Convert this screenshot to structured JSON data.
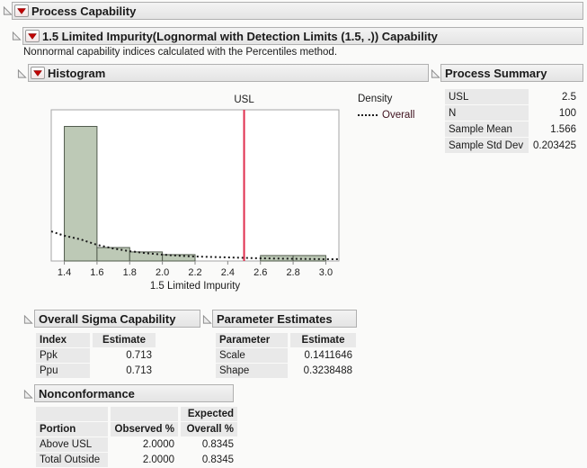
{
  "outline": {
    "root_title": "Process Capability",
    "variable_title": "1.5 Limited Impurity(Lognormal with Detection Limits (1.5, .)) Capability",
    "note": "Nonnormal capability indices calculated with the Percentiles method."
  },
  "histogram_section": {
    "title": "Histogram",
    "legend": {
      "title": "Density",
      "overall_label": "Overall"
    }
  },
  "chart_data": {
    "type": "bar",
    "subtype": "histogram",
    "title": "Histogram",
    "xlabel": "1.5 Limited Impurity",
    "ylabel": "Density",
    "x_range": [
      1.32,
      3.08
    ],
    "x_ticks": [
      1.4,
      1.6,
      1.8,
      2.0,
      2.2,
      2.4,
      2.6,
      2.8,
      3.0
    ],
    "bins": [
      [
        1.4,
        1.6
      ],
      [
        1.6,
        1.8
      ],
      [
        1.8,
        2.0
      ],
      [
        2.0,
        2.2
      ],
      [
        2.2,
        2.4
      ],
      [
        2.4,
        2.6
      ],
      [
        2.6,
        2.8
      ],
      [
        2.8,
        3.0
      ]
    ],
    "bar_heights_relative": [
      0.89,
      0.089,
      0.06,
      0.042,
      0,
      0,
      0.036,
      0.036
    ],
    "usl": 2.5,
    "usl_label": "USL",
    "curve": {
      "name": "Overall",
      "style": "dotted",
      "x": [
        1.32,
        1.4,
        1.5,
        1.6,
        1.7,
        1.8,
        1.9,
        2.0,
        2.1,
        2.2,
        2.4,
        2.6,
        2.8,
        3.0,
        3.08
      ],
      "y_relative": [
        0.196,
        0.167,
        0.143,
        0.107,
        0.083,
        0.065,
        0.052,
        0.042,
        0.035,
        0.03,
        0.024,
        0.018,
        0.015,
        0.012,
        0.012
      ]
    },
    "colors": {
      "bar_fill": "#bdc9b6",
      "bar_border": "#505a4c",
      "usl_line": "#e02e4e",
      "curve": "#1a1a1a",
      "plot_border": "#a6a6a6"
    }
  },
  "process_summary": {
    "title": "Process Summary",
    "rows": [
      {
        "label": "USL",
        "value": "2.5"
      },
      {
        "label": "N",
        "value": "100"
      },
      {
        "label": "Sample Mean",
        "value": "1.566"
      },
      {
        "label": "Sample Std Dev",
        "value": "0.203425"
      }
    ]
  },
  "overall_sigma": {
    "title": "Overall Sigma Capability",
    "columns": {
      "c1": "Index",
      "c2": "Estimate"
    },
    "rows": [
      {
        "index": "Ppk",
        "estimate": "0.713"
      },
      {
        "index": "Ppu",
        "estimate": "0.713"
      }
    ]
  },
  "parameter_estimates": {
    "title": "Parameter Estimates",
    "columns": {
      "c1": "Parameter",
      "c2": "Estimate"
    },
    "rows": [
      {
        "parameter": "Scale",
        "estimate": "0.1411646"
      },
      {
        "parameter": "Shape",
        "estimate": "0.3238488"
      }
    ]
  },
  "nonconformance": {
    "title": "Nonconformance",
    "columns_line1": {
      "c3": "Expected"
    },
    "columns_line2": {
      "c1": "Portion",
      "c2": "Observed %",
      "c3": "Overall %"
    },
    "rows": [
      {
        "portion": "Above USL",
        "observed": "2.0000",
        "expected": "0.8345"
      },
      {
        "portion": "Total Outside",
        "observed": "2.0000",
        "expected": "0.8345"
      }
    ]
  },
  "icons": {
    "disclosure": "open-disclosure-triangle",
    "menu": "red-triangle-menu"
  }
}
